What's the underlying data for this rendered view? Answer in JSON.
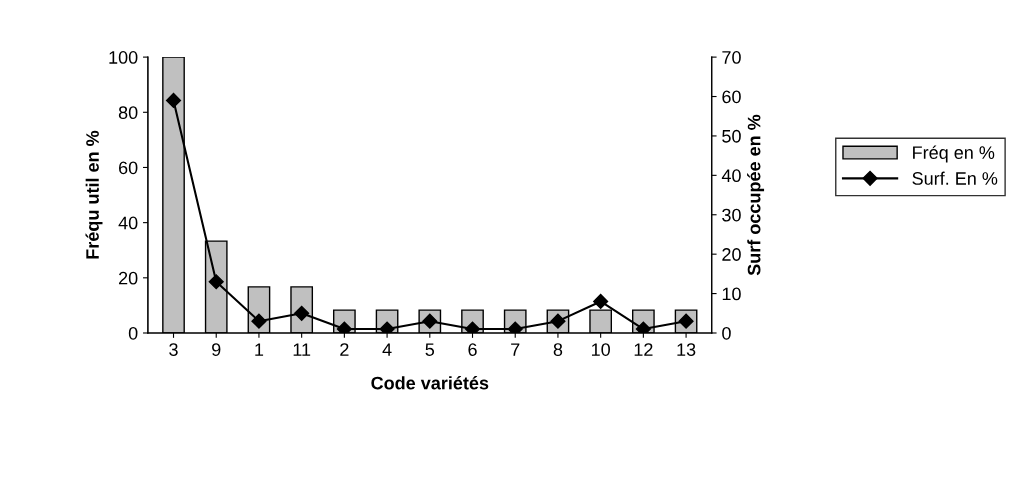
{
  "chart_data": {
    "type": "bar",
    "xlabel": "Code variétés",
    "ylabel": "Fréqu util en %",
    "y2label": "Surf occupée en %",
    "categories": [
      "3",
      "9",
      "1",
      "11",
      "2",
      "4",
      "5",
      "6",
      "7",
      "8",
      "10",
      "12",
      "13"
    ],
    "series": [
      {
        "name": "Fréq en %",
        "color": "#c0c0c0",
        "values": [
          100,
          33.3,
          16.7,
          16.7,
          8.3,
          8.3,
          8.3,
          8.3,
          8.3,
          8.3,
          8.3,
          8.3,
          8.3
        ]
      },
      {
        "name": "Surf. En %",
        "type": "line",
        "axis": "y2",
        "color": "#000000",
        "marker": "diamond",
        "values": [
          59,
          13,
          3,
          5,
          1,
          1,
          3,
          1,
          1,
          3,
          8,
          1,
          3
        ]
      }
    ],
    "ylim": [
      0,
      100
    ],
    "yticks": [
      0,
      20,
      40,
      60,
      80,
      100
    ],
    "y2lim": [
      0,
      70
    ],
    "y2ticks": [
      0,
      10,
      20,
      30,
      40,
      50,
      60,
      70
    ],
    "legend": "right",
    "grid": false
  }
}
